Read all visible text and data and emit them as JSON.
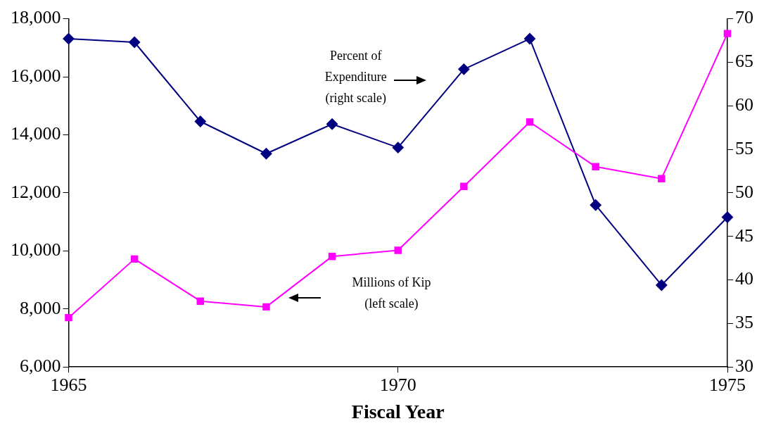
{
  "chart_data": {
    "type": "line",
    "xlabel": "Fiscal Year",
    "x": [
      1965,
      1966,
      1967,
      1968,
      1969,
      1970,
      1971,
      1972,
      1973,
      1974,
      1975
    ],
    "series": [
      {
        "color": "#ff00ff",
        "marker": "square",
        "values": [
          7700,
          9720,
          8270,
          8070,
          9810,
          10020,
          12220,
          14440,
          12900,
          12490,
          17490
        ]
      },
      {
        "color": "#000080",
        "marker": "diamond",
        "axis": "y2",
        "values": [
          67.7,
          67.3,
          58.2,
          54.5,
          57.9,
          55.2,
          64.2,
          67.7,
          48.6,
          39.4,
          47.2
        ]
      }
    ],
    "xlim": [
      1965,
      1975
    ],
    "xticks": [
      1965,
      1970,
      1975
    ],
    "ylim": [
      6000,
      18000
    ],
    "yticks": [
      {
        "value": 6000,
        "label": "6,000"
      },
      {
        "value": 8000,
        "label": "8,000"
      },
      {
        "value": 10000,
        "label": "10,000"
      },
      {
        "value": 12000,
        "label": "12,000"
      },
      {
        "value": 14000,
        "label": "14,000"
      },
      {
        "value": 16000,
        "label": "16,000"
      },
      {
        "value": 18000,
        "label": "18,000"
      }
    ],
    "y2lim": [
      30,
      70
    ],
    "y2ticks": [
      30,
      35,
      40,
      45,
      50,
      55,
      60,
      65,
      70
    ],
    "annotations": [
      "Percent of\nExpenditure\n(right scale)",
      "Millions of Kip\n(left scale)"
    ],
    "grid": false,
    "legend": false
  }
}
